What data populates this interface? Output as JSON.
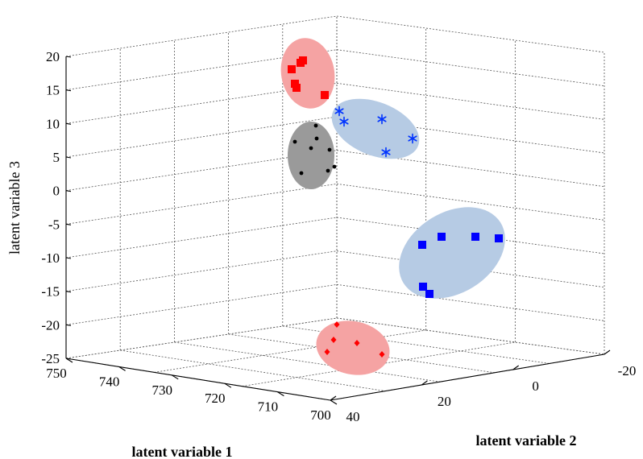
{
  "chart_data": {
    "type": "scatter",
    "subtype": "3d-scatter",
    "xlabel": "latent variable 1",
    "ylabel": "latent variable 2",
    "zlabel": "latent variable 3",
    "x_ticks": [
      "750",
      "740",
      "730",
      "720",
      "710",
      "700"
    ],
    "y_ticks": [
      "40",
      "20",
      "0",
      "-20"
    ],
    "z_ticks": [
      "20",
      "15",
      "10",
      "5",
      "0",
      "-5",
      "-10",
      "-15",
      "-20",
      "-25"
    ],
    "grid": true,
    "groups": [
      {
        "marker": "square",
        "color": "#ff0000",
        "ellipse": "#f5a3a3",
        "points": [
          [
            362,
            86
          ],
          [
            366,
            104
          ],
          [
            368,
            109
          ],
          [
            373,
            78
          ],
          [
            376,
            75
          ],
          [
            403,
            118
          ]
        ]
      },
      {
        "marker": "dot",
        "color": "#000000",
        "ellipse": "#9a9a9a",
        "points": [
          [
            366,
            176
          ],
          [
            374,
            215
          ],
          [
            386,
            184
          ],
          [
            392,
            156
          ],
          [
            393,
            172
          ],
          [
            407,
            212
          ],
          [
            409,
            186
          ],
          [
            415,
            207
          ]
        ]
      },
      {
        "marker": "asterisk",
        "color": "#0033ff",
        "ellipse": "#b6cbe4",
        "points": [
          [
            421,
            138
          ],
          [
            427,
            151
          ],
          [
            474,
            148
          ],
          [
            479,
            189
          ],
          [
            512,
            172
          ]
        ]
      },
      {
        "marker": "square",
        "color": "#0000ff",
        "ellipse": "#b6cbe4",
        "points": [
          [
            524,
            304
          ],
          [
            548,
            294
          ],
          [
            590,
            294
          ],
          [
            619,
            296
          ],
          [
            525,
            356
          ],
          [
            533,
            365
          ]
        ]
      },
      {
        "marker": "diamond",
        "color": "#ff0000",
        "ellipse": "#f5a3a3",
        "points": [
          [
            406,
            437
          ],
          [
            414,
            422
          ],
          [
            418,
            403
          ],
          [
            443,
            426
          ],
          [
            474,
            440
          ]
        ]
      }
    ]
  }
}
